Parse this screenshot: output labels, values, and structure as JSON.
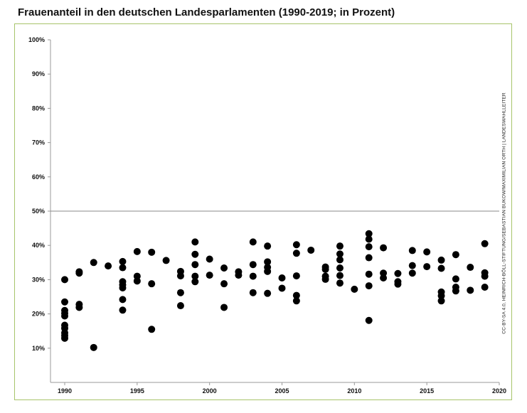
{
  "title": "Frauenanteil in den deutschen Landesparlamenten (1990-2019; in Prozent)",
  "source": "CC-BY-SA 4.0, HEINRICH-BÖLL-STIFTUNG/SEBASTIAN BUKOW/MAXIMILIAN ORTH | LANDESWAHLLEITER",
  "colors": {
    "points": "#000000",
    "reference_line": "#8a8a8a",
    "frame": "#a7c46a",
    "axis": "#999999"
  },
  "chart_data": {
    "type": "scatter",
    "title": "Frauenanteil in den deutschen Landesparlamenten (1990-2019; in Prozent)",
    "xlabel": "",
    "ylabel": "",
    "xlim": [
      1989,
      2020
    ],
    "ylim": [
      0,
      100
    ],
    "x_ticks": [
      1990,
      1995,
      2000,
      2005,
      2010,
      2015,
      2020
    ],
    "y_ticks": [
      10,
      20,
      30,
      40,
      50,
      60,
      70,
      80,
      90,
      100
    ],
    "x_tick_labels": [
      "1990",
      "1995",
      "2000",
      "2005",
      "2010",
      "2015",
      "2020"
    ],
    "y_tick_labels": [
      "10%",
      "20%",
      "30%",
      "40%",
      "50%",
      "60%",
      "70%",
      "80%",
      "90%",
      "100%"
    ],
    "grid": false,
    "reference_line": 50,
    "points": [
      {
        "x": 1990,
        "y": 30.0
      },
      {
        "x": 1990,
        "y": 23.5
      },
      {
        "x": 1990,
        "y": 21.0
      },
      {
        "x": 1990,
        "y": 20.2
      },
      {
        "x": 1990,
        "y": 19.4
      },
      {
        "x": 1990,
        "y": 16.7
      },
      {
        "x": 1990,
        "y": 15.8
      },
      {
        "x": 1990,
        "y": 14.5
      },
      {
        "x": 1990,
        "y": 13.7
      },
      {
        "x": 1990,
        "y": 12.9
      },
      {
        "x": 1991,
        "y": 32.3
      },
      {
        "x": 1991,
        "y": 31.9
      },
      {
        "x": 1991,
        "y": 22.8
      },
      {
        "x": 1991,
        "y": 21.9
      },
      {
        "x": 1992,
        "y": 35.0
      },
      {
        "x": 1992,
        "y": 10.2
      },
      {
        "x": 1993,
        "y": 34.0
      },
      {
        "x": 1994,
        "y": 35.3
      },
      {
        "x": 1994,
        "y": 33.5
      },
      {
        "x": 1994,
        "y": 29.4
      },
      {
        "x": 1994,
        "y": 28.5
      },
      {
        "x": 1994,
        "y": 27.6
      },
      {
        "x": 1994,
        "y": 24.2
      },
      {
        "x": 1994,
        "y": 21.1
      },
      {
        "x": 1995,
        "y": 38.2
      },
      {
        "x": 1995,
        "y": 31.0
      },
      {
        "x": 1995,
        "y": 29.6
      },
      {
        "x": 1996,
        "y": 38.0
      },
      {
        "x": 1996,
        "y": 28.8
      },
      {
        "x": 1996,
        "y": 15.5
      },
      {
        "x": 1997,
        "y": 35.6
      },
      {
        "x": 1998,
        "y": 32.4
      },
      {
        "x": 1998,
        "y": 31.1
      },
      {
        "x": 1998,
        "y": 26.2
      },
      {
        "x": 1998,
        "y": 22.4
      },
      {
        "x": 1999,
        "y": 41.0
      },
      {
        "x": 1999,
        "y": 37.4
      },
      {
        "x": 1999,
        "y": 34.4
      },
      {
        "x": 1999,
        "y": 31.0
      },
      {
        "x": 1999,
        "y": 29.4
      },
      {
        "x": 2000,
        "y": 36.0
      },
      {
        "x": 2000,
        "y": 31.3
      },
      {
        "x": 2001,
        "y": 33.4
      },
      {
        "x": 2001,
        "y": 28.8
      },
      {
        "x": 2001,
        "y": 21.9
      },
      {
        "x": 2002,
        "y": 32.3
      },
      {
        "x": 2002,
        "y": 31.3
      },
      {
        "x": 2003,
        "y": 41.0
      },
      {
        "x": 2003,
        "y": 34.4
      },
      {
        "x": 2003,
        "y": 31.0
      },
      {
        "x": 2003,
        "y": 26.2
      },
      {
        "x": 2004,
        "y": 39.8
      },
      {
        "x": 2004,
        "y": 35.2
      },
      {
        "x": 2004,
        "y": 33.6
      },
      {
        "x": 2004,
        "y": 32.4
      },
      {
        "x": 2004,
        "y": 26.0
      },
      {
        "x": 2005,
        "y": 30.5
      },
      {
        "x": 2005,
        "y": 27.5
      },
      {
        "x": 2006,
        "y": 40.2
      },
      {
        "x": 2006,
        "y": 37.7
      },
      {
        "x": 2006,
        "y": 31.1
      },
      {
        "x": 2006,
        "y": 25.4
      },
      {
        "x": 2006,
        "y": 23.8
      },
      {
        "x": 2007,
        "y": 38.6
      },
      {
        "x": 2008,
        "y": 33.7
      },
      {
        "x": 2008,
        "y": 33.0
      },
      {
        "x": 2008,
        "y": 31.0
      },
      {
        "x": 2008,
        "y": 30.1
      },
      {
        "x": 2009,
        "y": 39.8
      },
      {
        "x": 2009,
        "y": 37.5
      },
      {
        "x": 2009,
        "y": 35.8
      },
      {
        "x": 2009,
        "y": 33.4
      },
      {
        "x": 2009,
        "y": 31.2
      },
      {
        "x": 2009,
        "y": 29.0
      },
      {
        "x": 2010,
        "y": 27.2
      },
      {
        "x": 2011,
        "y": 43.4
      },
      {
        "x": 2011,
        "y": 41.8
      },
      {
        "x": 2011,
        "y": 39.6
      },
      {
        "x": 2011,
        "y": 36.4
      },
      {
        "x": 2011,
        "y": 31.6
      },
      {
        "x": 2011,
        "y": 28.2
      },
      {
        "x": 2011,
        "y": 18.1
      },
      {
        "x": 2012,
        "y": 39.3
      },
      {
        "x": 2012,
        "y": 31.9
      },
      {
        "x": 2012,
        "y": 30.5
      },
      {
        "x": 2013,
        "y": 31.8
      },
      {
        "x": 2013,
        "y": 29.4
      },
      {
        "x": 2013,
        "y": 28.7
      },
      {
        "x": 2014,
        "y": 38.5
      },
      {
        "x": 2014,
        "y": 34.1
      },
      {
        "x": 2014,
        "y": 31.9
      },
      {
        "x": 2015,
        "y": 38.1
      },
      {
        "x": 2015,
        "y": 33.8
      },
      {
        "x": 2016,
        "y": 35.7
      },
      {
        "x": 2016,
        "y": 33.3
      },
      {
        "x": 2016,
        "y": 26.4
      },
      {
        "x": 2016,
        "y": 25.3
      },
      {
        "x": 2016,
        "y": 23.8
      },
      {
        "x": 2017,
        "y": 37.3
      },
      {
        "x": 2017,
        "y": 30.2
      },
      {
        "x": 2017,
        "y": 27.8
      },
      {
        "x": 2017,
        "y": 26.7
      },
      {
        "x": 2018,
        "y": 33.6
      },
      {
        "x": 2018,
        "y": 26.9
      },
      {
        "x": 2019,
        "y": 40.5
      },
      {
        "x": 2019,
        "y": 32.0
      },
      {
        "x": 2019,
        "y": 31.0
      },
      {
        "x": 2019,
        "y": 27.8
      }
    ]
  }
}
